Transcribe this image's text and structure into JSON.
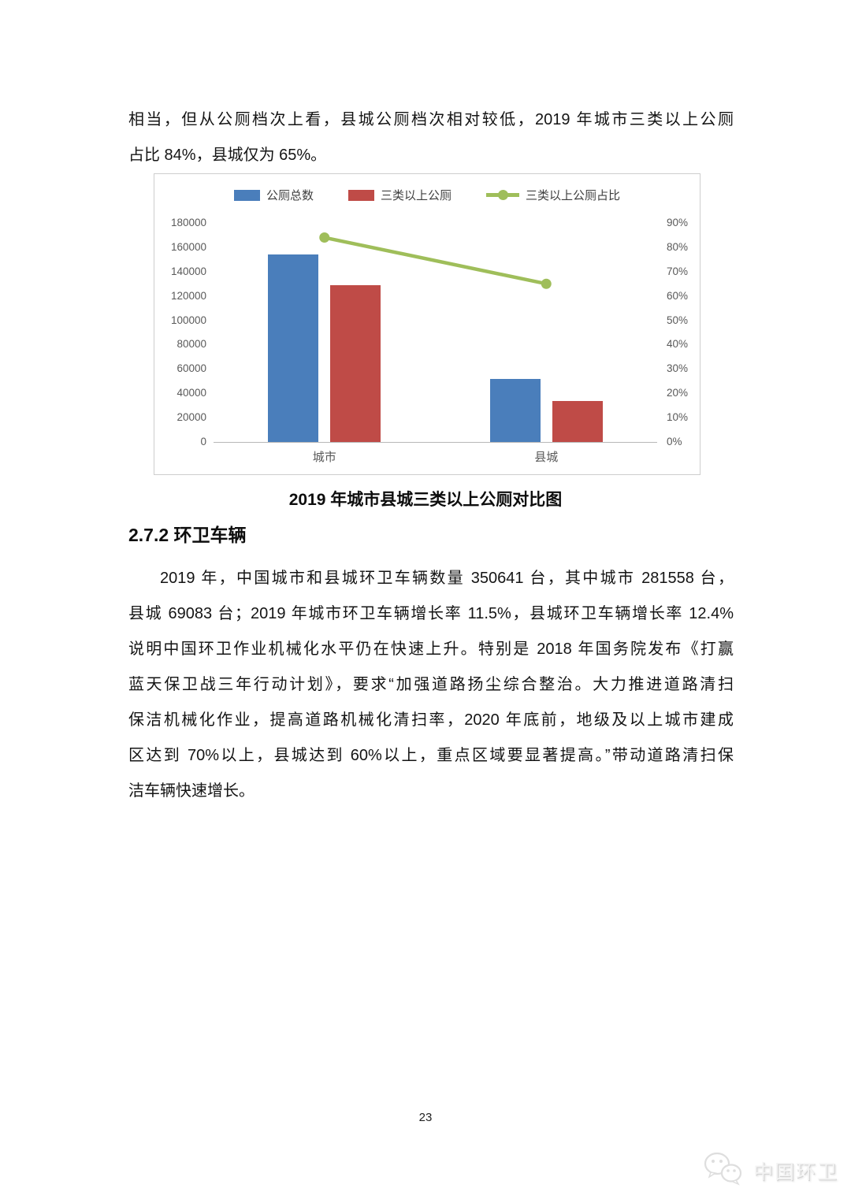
{
  "document": {
    "intro": {
      "lines": [
        "相当，但从公厕档次上看，县城公厕档次相对较低，2019 年城市三类以上公厕",
        "占比 84%，县城仅为 65%。"
      ]
    },
    "figure_caption": "2019 年城市县城三类以上公厕对比图",
    "section_heading": "2.7.2 环卫车辆",
    "body": {
      "lines": [
        "2019 年，中国城市和县城环卫车辆数量 350641 台，其中城市 281558 台，",
        "县城 69083 台；2019 年城市环卫车辆增长率 11.5%，县城环卫车辆增长率 12.4%",
        "说明中国环卫作业机械化水平仍在快速上升。特别是 2018 年国务院发布《打赢",
        "蓝天保卫战三年行动计划》，要求“加强道路扬尘综合整治。大力推进道路清扫",
        "保洁机械化作业，提高道路机械化清扫率，2020 年底前，地级及以上城市建成",
        "区达到 70%以上，县城达到 60%以上，重点区域要显著提高。”带动道路清扫保",
        "洁车辆快速增长。"
      ]
    },
    "page_number": "23",
    "watermark": {
      "label": "中国环卫",
      "icon": "wechat-icon"
    }
  },
  "chart_data": {
    "type": "bar",
    "subtype": "bar+line combo, dual axis",
    "title": "2019 年城市县城三类以上公厕对比图",
    "categories": [
      "城市",
      "县城"
    ],
    "series": [
      {
        "name": "公厕总数",
        "kind": "bar",
        "axis": "left",
        "color": "#4a7ebb",
        "values": [
          154000,
          52000
        ]
      },
      {
        "name": "三类以上公厕",
        "kind": "bar",
        "axis": "left",
        "color": "#bf4b47",
        "values": [
          129000,
          34000
        ]
      },
      {
        "name": "三类以上公厕占比",
        "kind": "line",
        "axis": "right",
        "color": "#9fbe5a",
        "values": [
          84,
          65
        ],
        "unit": "%"
      }
    ],
    "left_axis": {
      "min": 0,
      "max": 180000,
      "step": 20000
    },
    "right_axis": {
      "min": 0,
      "max": 90,
      "step": 10,
      "suffix": "%"
    },
    "legend_position": "top",
    "grid": false
  }
}
